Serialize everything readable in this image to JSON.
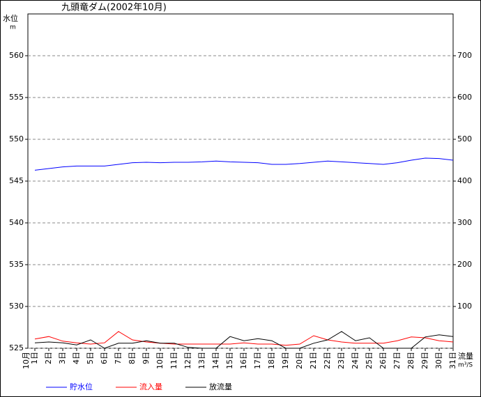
{
  "chart_data": {
    "type": "line",
    "title": "九頭竜ダム(2002年10月)",
    "y_label": "水位",
    "y_unit": "m",
    "y2_label": "流量",
    "y2_unit": "m³/S",
    "month_label": "10月",
    "categories": [
      "1日",
      "2日",
      "3日",
      "4日",
      "5日",
      "6日",
      "7日",
      "8日",
      "9日",
      "10日",
      "11日",
      "12日",
      "13日",
      "14日",
      "15日",
      "16日",
      "17日",
      "18日",
      "19日",
      "20日",
      "21日",
      "22日",
      "23日",
      "24日",
      "25日",
      "26日",
      "27日",
      "28日",
      "29日",
      "30日",
      "31日"
    ],
    "ylim": [
      525,
      565
    ],
    "yticks": [
      525,
      530,
      535,
      540,
      545,
      550,
      555,
      560
    ],
    "y2lim": [
      0,
      800
    ],
    "y2ticks": [
      100,
      200,
      300,
      400,
      500,
      600,
      700
    ],
    "grid": true,
    "series": [
      {
        "name": "貯水位",
        "color": "#0000ff",
        "values": [
          546.3,
          546.5,
          546.7,
          546.8,
          546.8,
          546.8,
          547.0,
          547.2,
          547.25,
          547.2,
          547.25,
          547.25,
          547.3,
          547.4,
          547.3,
          547.25,
          547.2,
          547.0,
          547.0,
          547.1,
          547.25,
          547.4,
          547.3,
          547.2,
          547.1,
          547.0,
          547.2,
          547.5,
          547.75,
          547.7,
          547.5
        ]
      },
      {
        "name": "流入量",
        "color": "#ff0000",
        "axis": "y2",
        "values": [
          22,
          28,
          17,
          13,
          10,
          13,
          40,
          20,
          15,
          12,
          10,
          10,
          10,
          10,
          10,
          13,
          10,
          10,
          7,
          10,
          30,
          20,
          15,
          12,
          12,
          12,
          18,
          27,
          25,
          18,
          15
        ]
      },
      {
        "name": "放流量",
        "color": "#000000",
        "axis": "y2",
        "values": [
          13,
          15,
          13,
          8,
          20,
          0,
          12,
          12,
          18,
          12,
          12,
          2,
          0,
          0,
          28,
          18,
          23,
          18,
          0,
          0,
          12,
          20,
          40,
          18,
          25,
          0,
          0,
          0,
          27,
          32,
          28
        ]
      }
    ]
  }
}
